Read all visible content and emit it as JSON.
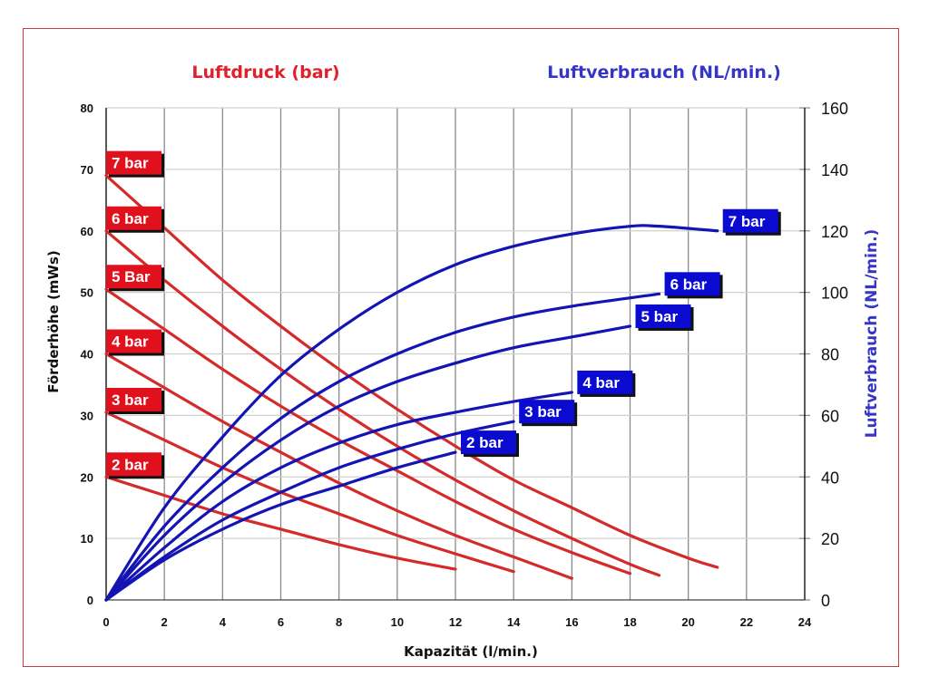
{
  "chart_data": {
    "type": "line",
    "title_left": "Luftdruck (bar)",
    "title_right": "Luftverbrauch (NL/min.)",
    "xlabel": "Kapazität (l/min.)",
    "ylabel": "Förderhöhe (mWs)",
    "ylabel_right": "Luftverbrauch (NL/min.)",
    "xlim": [
      0,
      24
    ],
    "ylim": [
      0,
      80
    ],
    "ylim_right": [
      0,
      160
    ],
    "x_ticks": [
      "0",
      "2",
      "4",
      "6",
      "8",
      "10",
      "12",
      "14",
      "16",
      "18",
      "20",
      "22",
      "24"
    ],
    "y_ticks": [
      "0",
      "10",
      "20",
      "30",
      "40",
      "50",
      "60",
      "70",
      "80"
    ],
    "y_ticks_right": [
      "0",
      "20",
      "40",
      "60",
      "80",
      "100",
      "120",
      "140",
      "160"
    ],
    "grid": true,
    "colors": {
      "head": "#d42a2a",
      "air": "#1414b4",
      "head_tag": "#e0101c",
      "air_tag": "#0a0ad0"
    },
    "head_series": [
      {
        "name": "7 bar",
        "axis": "left",
        "points": [
          [
            0,
            69
          ],
          [
            2,
            60.5
          ],
          [
            4,
            52
          ],
          [
            6,
            44.5
          ],
          [
            8,
            37.5
          ],
          [
            10,
            31
          ],
          [
            12,
            25
          ],
          [
            14,
            19.5
          ],
          [
            16,
            15
          ],
          [
            18,
            10.5
          ],
          [
            20,
            6.8
          ],
          [
            21,
            5.3
          ]
        ]
      },
      {
        "name": "6 bar",
        "axis": "left",
        "points": [
          [
            0,
            60
          ],
          [
            2,
            52
          ],
          [
            4,
            44.5
          ],
          [
            6,
            37.5
          ],
          [
            8,
            31
          ],
          [
            10,
            25
          ],
          [
            12,
            19.5
          ],
          [
            14,
            14.5
          ],
          [
            16,
            10
          ],
          [
            18,
            5.8
          ],
          [
            19,
            4.0
          ]
        ]
      },
      {
        "name": "5 Bar",
        "axis": "left",
        "points": [
          [
            0,
            50.5
          ],
          [
            2,
            44
          ],
          [
            4,
            37.5
          ],
          [
            6,
            31.5
          ],
          [
            8,
            26
          ],
          [
            10,
            21
          ],
          [
            12,
            16
          ],
          [
            14,
            11.5
          ],
          [
            16,
            7.7
          ],
          [
            18,
            4.3
          ]
        ]
      },
      {
        "name": "4 bar",
        "axis": "left",
        "points": [
          [
            0,
            40
          ],
          [
            2,
            34.5
          ],
          [
            4,
            29
          ],
          [
            6,
            24
          ],
          [
            8,
            19
          ],
          [
            10,
            14.5
          ],
          [
            12,
            10.5
          ],
          [
            14,
            7
          ],
          [
            16,
            3.5
          ]
        ]
      },
      {
        "name": "3 bar",
        "axis": "left",
        "points": [
          [
            0,
            30.5
          ],
          [
            2,
            26
          ],
          [
            4,
            21.5
          ],
          [
            6,
            17.5
          ],
          [
            8,
            14
          ],
          [
            10,
            10.5
          ],
          [
            12,
            7.5
          ],
          [
            14,
            4.6
          ]
        ]
      },
      {
        "name": "2 bar",
        "axis": "left",
        "points": [
          [
            0,
            20
          ],
          [
            2,
            17
          ],
          [
            4,
            14
          ],
          [
            6,
            11.5
          ],
          [
            8,
            9
          ],
          [
            10,
            6.8
          ],
          [
            12,
            5.0
          ]
        ]
      }
    ],
    "air_series": [
      {
        "name": "7 bar",
        "axis": "right",
        "points": [
          [
            0,
            0
          ],
          [
            2,
            30
          ],
          [
            4,
            53
          ],
          [
            6,
            73
          ],
          [
            8,
            88
          ],
          [
            10,
            100
          ],
          [
            12,
            109
          ],
          [
            14,
            115
          ],
          [
            16,
            119
          ],
          [
            18,
            121.5
          ],
          [
            19,
            121.5
          ],
          [
            21,
            120
          ]
        ]
      },
      {
        "name": "6 bar",
        "axis": "right",
        "points": [
          [
            0,
            0
          ],
          [
            2,
            24
          ],
          [
            4,
            43
          ],
          [
            6,
            59
          ],
          [
            8,
            71
          ],
          [
            10,
            80
          ],
          [
            12,
            87
          ],
          [
            14,
            92
          ],
          [
            16,
            95.5
          ],
          [
            19,
            99.5
          ]
        ]
      },
      {
        "name": "5 bar",
        "axis": "right",
        "points": [
          [
            0,
            0
          ],
          [
            2,
            21
          ],
          [
            4,
            38
          ],
          [
            6,
            52
          ],
          [
            8,
            63
          ],
          [
            10,
            71
          ],
          [
            12,
            77
          ],
          [
            14,
            82
          ],
          [
            16,
            85.5
          ],
          [
            18,
            89
          ]
        ]
      },
      {
        "name": "4 bar",
        "axis": "right",
        "points": [
          [
            0,
            0
          ],
          [
            2,
            17
          ],
          [
            4,
            32
          ],
          [
            6,
            43
          ],
          [
            8,
            51
          ],
          [
            10,
            57
          ],
          [
            12,
            61
          ],
          [
            14,
            64.5
          ],
          [
            16,
            67.5
          ]
        ]
      },
      {
        "name": "3 bar",
        "axis": "right",
        "points": [
          [
            0,
            0
          ],
          [
            2,
            14
          ],
          [
            4,
            26
          ],
          [
            6,
            35
          ],
          [
            8,
            43
          ],
          [
            10,
            49
          ],
          [
            12,
            54
          ],
          [
            14,
            58
          ]
        ]
      },
      {
        "name": "2 bar",
        "axis": "right",
        "points": [
          [
            0,
            0
          ],
          [
            2,
            13
          ],
          [
            4,
            23
          ],
          [
            6,
            31
          ],
          [
            8,
            37
          ],
          [
            10,
            43
          ],
          [
            12,
            48
          ]
        ]
      }
    ]
  }
}
